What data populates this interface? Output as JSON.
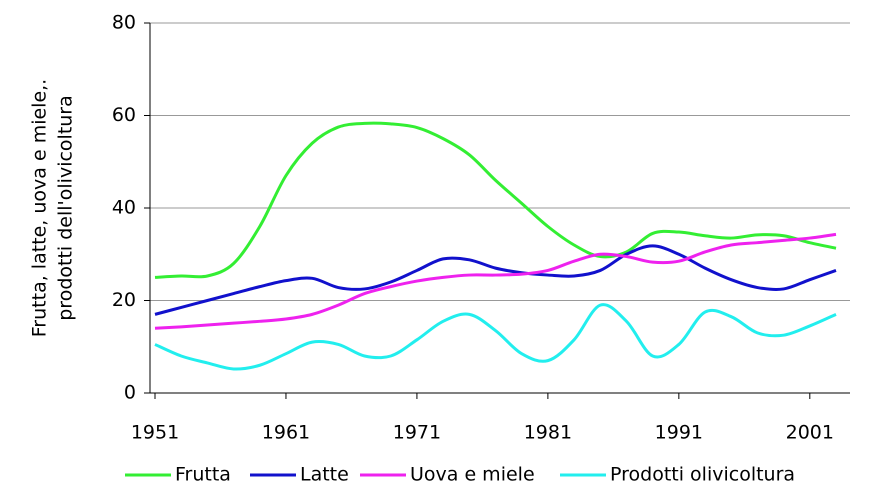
{
  "chart_data": {
    "type": "line",
    "y_label": [
      "Frutta, latte, uova e miele,.",
      "prodotti dell'olivicoltura"
    ],
    "categories": [
      "1951",
      null,
      null,
      null,
      null,
      "1961",
      null,
      null,
      null,
      null,
      "1971",
      null,
      null,
      null,
      null,
      "1981",
      null,
      null,
      null,
      null,
      "1991",
      null,
      null,
      null,
      null,
      "2001",
      null
    ],
    "series": [
      {
        "name": "Frutta",
        "color": "#33ee33",
        "values": [
          25,
          25.3,
          25.3,
          28,
          36,
          47,
          54,
          57.5,
          58.3,
          58.2,
          57.4,
          55,
          51.5,
          46,
          41,
          36,
          32,
          29.5,
          30.5,
          34.5,
          34.8,
          34,
          33.5,
          34.2,
          34,
          32.5,
          31.3
        ]
      },
      {
        "name": "Latte",
        "color": "#1111cc",
        "values": [
          17,
          18.5,
          20,
          21.5,
          23,
          24.3,
          24.8,
          22.8,
          22.5,
          24,
          26.5,
          29,
          28.8,
          27,
          26,
          25.5,
          25.3,
          26.5,
          30,
          31.8,
          30,
          27,
          24.5,
          22.8,
          22.5,
          24.5,
          26.5
        ]
      },
      {
        "name": "Uova e miele",
        "color": "#ee22ee",
        "values": [
          14,
          14.3,
          14.7,
          15.1,
          15.5,
          16,
          17,
          19,
          21.5,
          23,
          24.2,
          25,
          25.5,
          25.5,
          25.7,
          26.5,
          28.5,
          30,
          29.5,
          28.3,
          28.5,
          30.5,
          32,
          32.5,
          33,
          33.5,
          34.3
        ]
      },
      {
        "name": "Prodotti olivicoltura",
        "color": "#22eeee",
        "values": [
          10.5,
          8,
          6.5,
          5.2,
          6,
          8.5,
          11,
          10.5,
          8,
          8,
          11.5,
          15.5,
          17,
          13.5,
          8.5,
          7,
          11.5,
          19,
          15.5,
          8,
          10.5,
          17.5,
          16.5,
          13,
          12.5,
          14.5,
          17
        ]
      }
    ],
    "ylim": [
      0,
      80
    ],
    "yticks": [
      0,
      20,
      40,
      60,
      80
    ],
    "grid": true,
    "legend": "bottom"
  }
}
